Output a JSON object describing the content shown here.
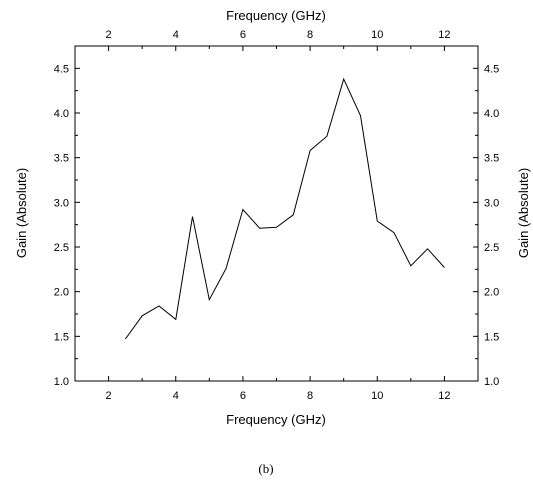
{
  "chart_data": {
    "type": "line",
    "xlabel_bottom": "Frequency (GHz)",
    "xlabel_top": "Frequency (GHz)",
    "ylabel_left": "Gain (Absolute)",
    "ylabel_right": "Gain (Absolute)",
    "xlim": [
      1,
      13
    ],
    "ylim": [
      1.0,
      4.75
    ],
    "x_ticks": [
      "2",
      "4",
      "6",
      "8",
      "10",
      "12"
    ],
    "y_ticks": [
      "1.0",
      "1.5",
      "2.0",
      "2.5",
      "3.0",
      "3.5",
      "4.0",
      "4.5"
    ],
    "grid": false,
    "series": [
      {
        "x": [
          2.5,
          3.0,
          3.5,
          4.0,
          4.5,
          5.0,
          5.5,
          6.0,
          6.5,
          7.0,
          7.5,
          8.0,
          8.5,
          9.0,
          9.5,
          10.0,
          10.5,
          11.0,
          11.5,
          12.0
        ],
        "y": [
          1.47,
          1.73,
          1.84,
          1.69,
          2.84,
          1.91,
          2.26,
          2.92,
          2.71,
          2.72,
          2.86,
          3.58,
          3.74,
          4.38,
          3.97,
          2.79,
          2.66,
          2.29,
          2.48,
          2.27
        ],
        "color": "#000000"
      }
    ]
  },
  "caption": "(b)"
}
